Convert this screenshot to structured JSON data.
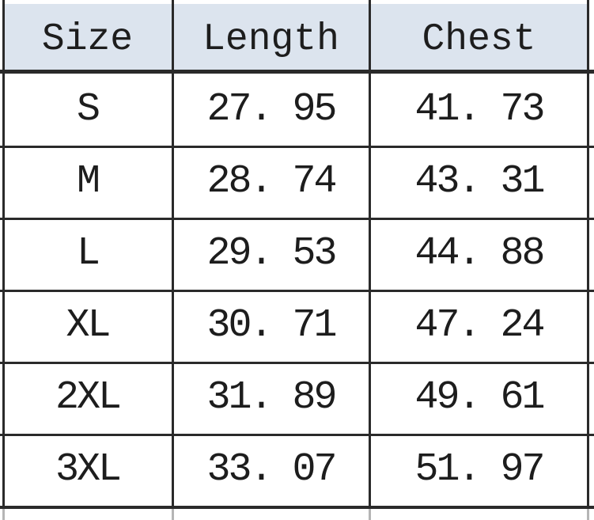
{
  "table": {
    "headers": [
      "Size",
      "Length",
      "Chest"
    ],
    "rows": [
      [
        "S",
        "27. 95",
        "41. 73"
      ],
      [
        "M",
        "28. 74",
        "43. 31"
      ],
      [
        "L",
        "29. 53",
        "44. 88"
      ],
      [
        "XL",
        "30. 71",
        "47. 24"
      ],
      [
        "2XL",
        "31. 89",
        "49. 61"
      ],
      [
        "3XL",
        "33. 07",
        "51. 97"
      ]
    ]
  },
  "chart_data": {
    "type": "table",
    "columns": [
      "Size",
      "Length",
      "Chest"
    ],
    "rows": [
      [
        "S",
        27.95,
        41.73
      ],
      [
        "M",
        28.74,
        43.31
      ],
      [
        "L",
        29.53,
        44.88
      ],
      [
        "XL",
        30.71,
        47.24
      ],
      [
        "2XL",
        31.89,
        49.61
      ],
      [
        "3XL",
        33.07,
        51.97
      ]
    ],
    "notes": "Clothing size chart; measurements in inches; no title or units shown in image"
  },
  "colors": {
    "header_bg": "#dce4ee",
    "grid_line": "#2a2a2a",
    "text": "#1d1d1d",
    "background": "#ffffff"
  }
}
